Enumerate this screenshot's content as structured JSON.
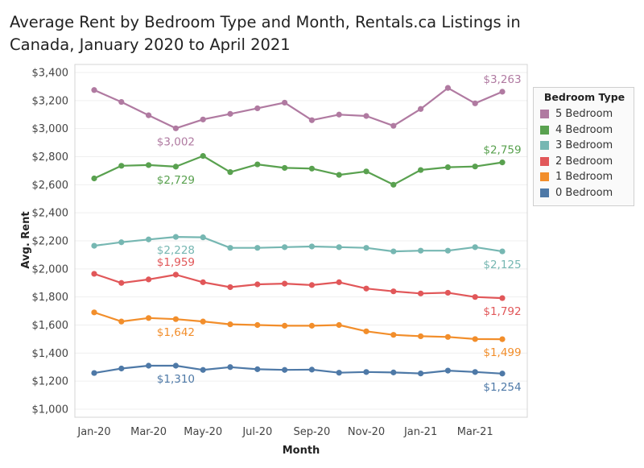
{
  "chart_data": {
    "type": "line",
    "title": "Average Rent by Bedroom Type and Month, Rentals.ca Listings in Canada, January 2020 to April 2021",
    "xlabel": "Month",
    "ylabel": "Avg. Rent",
    "ylim": [
      1000,
      3400
    ],
    "yticks": [
      1000,
      1200,
      1400,
      1600,
      1800,
      2000,
      2200,
      2400,
      2600,
      2800,
      3000,
      3200,
      3400
    ],
    "ytick_labels": [
      "$1,000",
      "$1,200",
      "$1,400",
      "$1,600",
      "$1,800",
      "$2,000",
      "$2,200",
      "$2,400",
      "$2,600",
      "$2,800",
      "$3,000",
      "$3,200",
      "$3,400"
    ],
    "x": [
      "Jan-20",
      "Feb-20",
      "Mar-20",
      "Apr-20",
      "May-20",
      "Jun-20",
      "Jul-20",
      "Aug-20",
      "Sep-20",
      "Oct-20",
      "Nov-20",
      "Dec-20",
      "Jan-21",
      "Feb-21",
      "Mar-21",
      "Apr-21"
    ],
    "xtick_labels": [
      "Jan-20",
      "Mar-20",
      "May-20",
      "Jul-20",
      "Sep-20",
      "Nov-20",
      "Jan-21",
      "Mar-21"
    ],
    "grid": true,
    "legend": {
      "title": "Bedroom Type",
      "placement": "right"
    },
    "series": [
      {
        "name": "5 Bedroom",
        "color": "#b07aa1",
        "values": [
          3275,
          3190,
          3095,
          3002,
          3065,
          3105,
          3145,
          3185,
          3060,
          3100,
          3090,
          3020,
          3140,
          3290,
          3180,
          3263
        ],
        "labels": [
          {
            "index": 3,
            "text": "$3,002",
            "pos": "below"
          },
          {
            "index": 15,
            "text": "$3,263",
            "pos": "above"
          }
        ]
      },
      {
        "name": "4 Bedroom",
        "color": "#59a14f",
        "values": [
          2645,
          2735,
          2740,
          2729,
          2805,
          2690,
          2745,
          2720,
          2715,
          2670,
          2695,
          2600,
          2705,
          2725,
          2730,
          2759
        ],
        "labels": [
          {
            "index": 3,
            "text": "$2,729",
            "pos": "below"
          },
          {
            "index": 15,
            "text": "$2,759",
            "pos": "above"
          }
        ]
      },
      {
        "name": "3 Bedroom",
        "color": "#76b7b2",
        "values": [
          2165,
          2190,
          2210,
          2228,
          2225,
          2150,
          2150,
          2155,
          2160,
          2155,
          2150,
          2125,
          2130,
          2130,
          2155,
          2125
        ],
        "labels": [
          {
            "index": 3,
            "text": "$2,228",
            "pos": "below"
          },
          {
            "index": 15,
            "text": "$2,125",
            "pos": "below"
          }
        ]
      },
      {
        "name": "2 Bedroom",
        "color": "#e15759",
        "values": [
          1965,
          1900,
          1925,
          1959,
          1905,
          1870,
          1890,
          1895,
          1885,
          1905,
          1860,
          1840,
          1825,
          1830,
          1800,
          1792
        ],
        "labels": [
          {
            "index": 3,
            "text": "$1,959",
            "pos": "above"
          },
          {
            "index": 15,
            "text": "$1,792",
            "pos": "below"
          }
        ]
      },
      {
        "name": "1 Bedroom",
        "color": "#f28e2b",
        "values": [
          1690,
          1625,
          1650,
          1642,
          1625,
          1605,
          1600,
          1595,
          1595,
          1600,
          1555,
          1530,
          1520,
          1515,
          1500,
          1499
        ],
        "labels": [
          {
            "index": 3,
            "text": "$1,642",
            "pos": "below"
          },
          {
            "index": 15,
            "text": "$1,499",
            "pos": "below"
          }
        ]
      },
      {
        "name": "0 Bedroom",
        "color": "#4e79a7",
        "values": [
          1258,
          1290,
          1310,
          1310,
          1280,
          1300,
          1285,
          1280,
          1282,
          1260,
          1265,
          1262,
          1255,
          1275,
          1265,
          1254
        ],
        "labels": [
          {
            "index": 3,
            "text": "$1,310",
            "pos": "below"
          },
          {
            "index": 15,
            "text": "$1,254",
            "pos": "below"
          }
        ]
      }
    ]
  },
  "legend_items": [
    {
      "name": "5 Bedroom",
      "color": "#b07aa1"
    },
    {
      "name": "4 Bedroom",
      "color": "#59a14f"
    },
    {
      "name": "3 Bedroom",
      "color": "#76b7b2"
    },
    {
      "name": "2 Bedroom",
      "color": "#e15759"
    },
    {
      "name": "1 Bedroom",
      "color": "#f28e2b"
    },
    {
      "name": "0 Bedroom",
      "color": "#4e79a7"
    }
  ]
}
